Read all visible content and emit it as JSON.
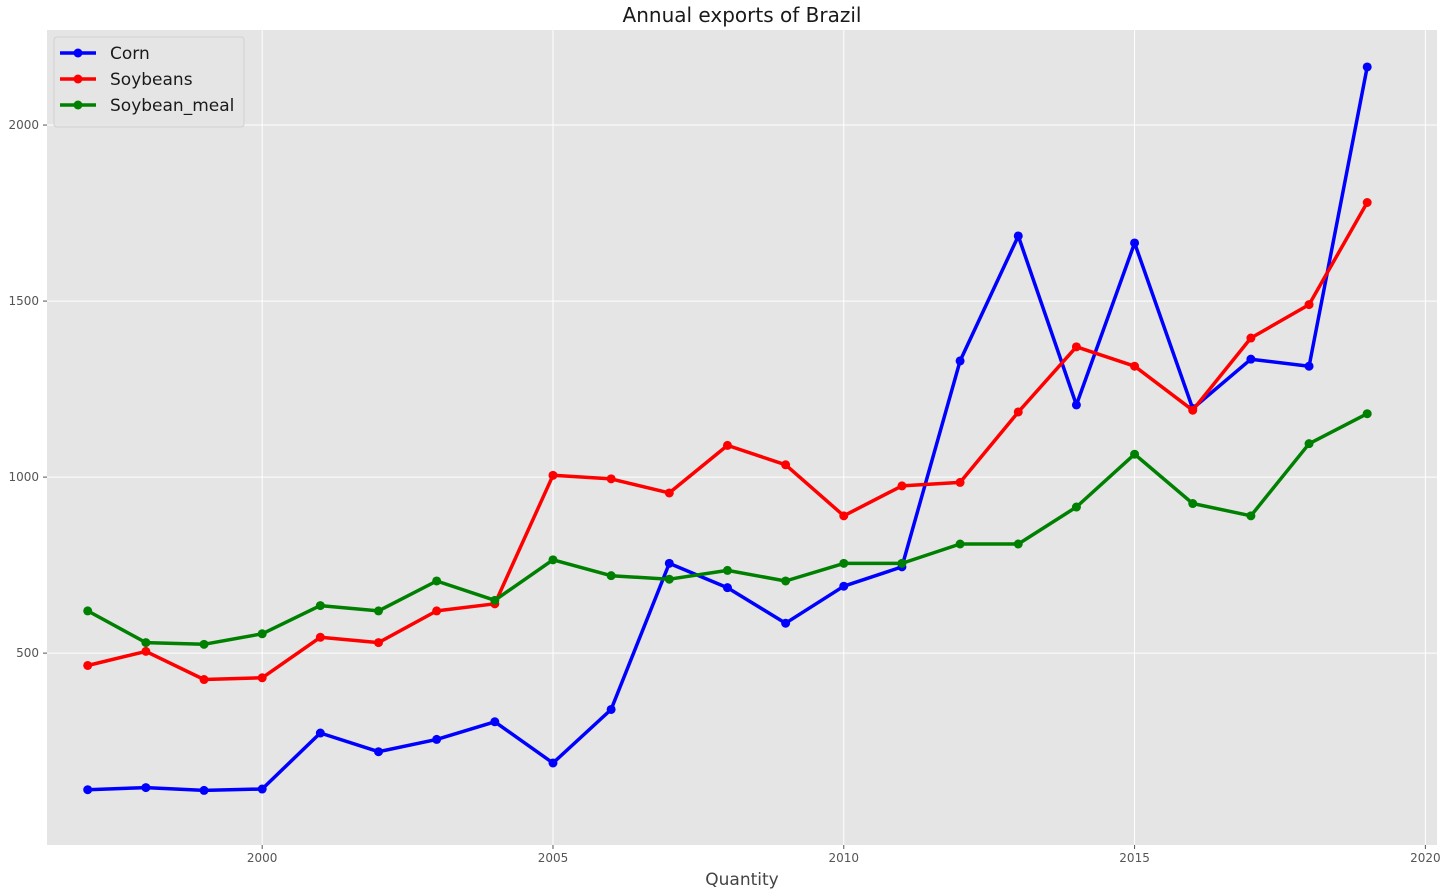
{
  "chart_data": {
    "type": "line",
    "title": "Annual exports of Brazil",
    "xlabel": "Quantity",
    "ylabel": "",
    "xlim": [
      1996.3,
      2020.2
    ],
    "ylim": [
      -45,
      2270
    ],
    "xticks": [
      2000,
      2005,
      2010,
      2015,
      2020
    ],
    "yticks": [
      500,
      1000,
      1500,
      2000
    ],
    "grid": true,
    "legend_position": "top-left",
    "colors": {
      "plot_background": "#e5e5e5",
      "grid": "#ffffff",
      "Corn": "#0000ff",
      "Soybeans": "#ff0000",
      "Soybean_meal": "#008000"
    },
    "x": [
      1997,
      1998,
      1999,
      2000,
      2001,
      2002,
      2003,
      2004,
      2005,
      2006,
      2007,
      2008,
      2009,
      2010,
      2011,
      2012,
      2013,
      2014,
      2015,
      2016,
      2017,
      2018,
      2019
    ],
    "series": [
      {
        "name": "Corn",
        "values": [
          112,
          118,
          110,
          114,
          273,
          220,
          255,
          305,
          188,
          340,
          755,
          686,
          585,
          690,
          745,
          1330,
          1685,
          1205,
          1665,
          1195,
          1335,
          1315,
          2165
        ]
      },
      {
        "name": "Soybeans",
        "values": [
          465,
          505,
          425,
          430,
          545,
          530,
          620,
          640,
          1005,
          995,
          955,
          1090,
          1035,
          890,
          975,
          985,
          1185,
          1370,
          1315,
          1190,
          1395,
          1490,
          1780
        ]
      },
      {
        "name": "Soybean_meal",
        "values": [
          620,
          530,
          525,
          555,
          635,
          620,
          705,
          650,
          765,
          720,
          710,
          735,
          705,
          755,
          755,
          810,
          810,
          915,
          1065,
          925,
          890,
          1095,
          1180
        ]
      }
    ]
  }
}
